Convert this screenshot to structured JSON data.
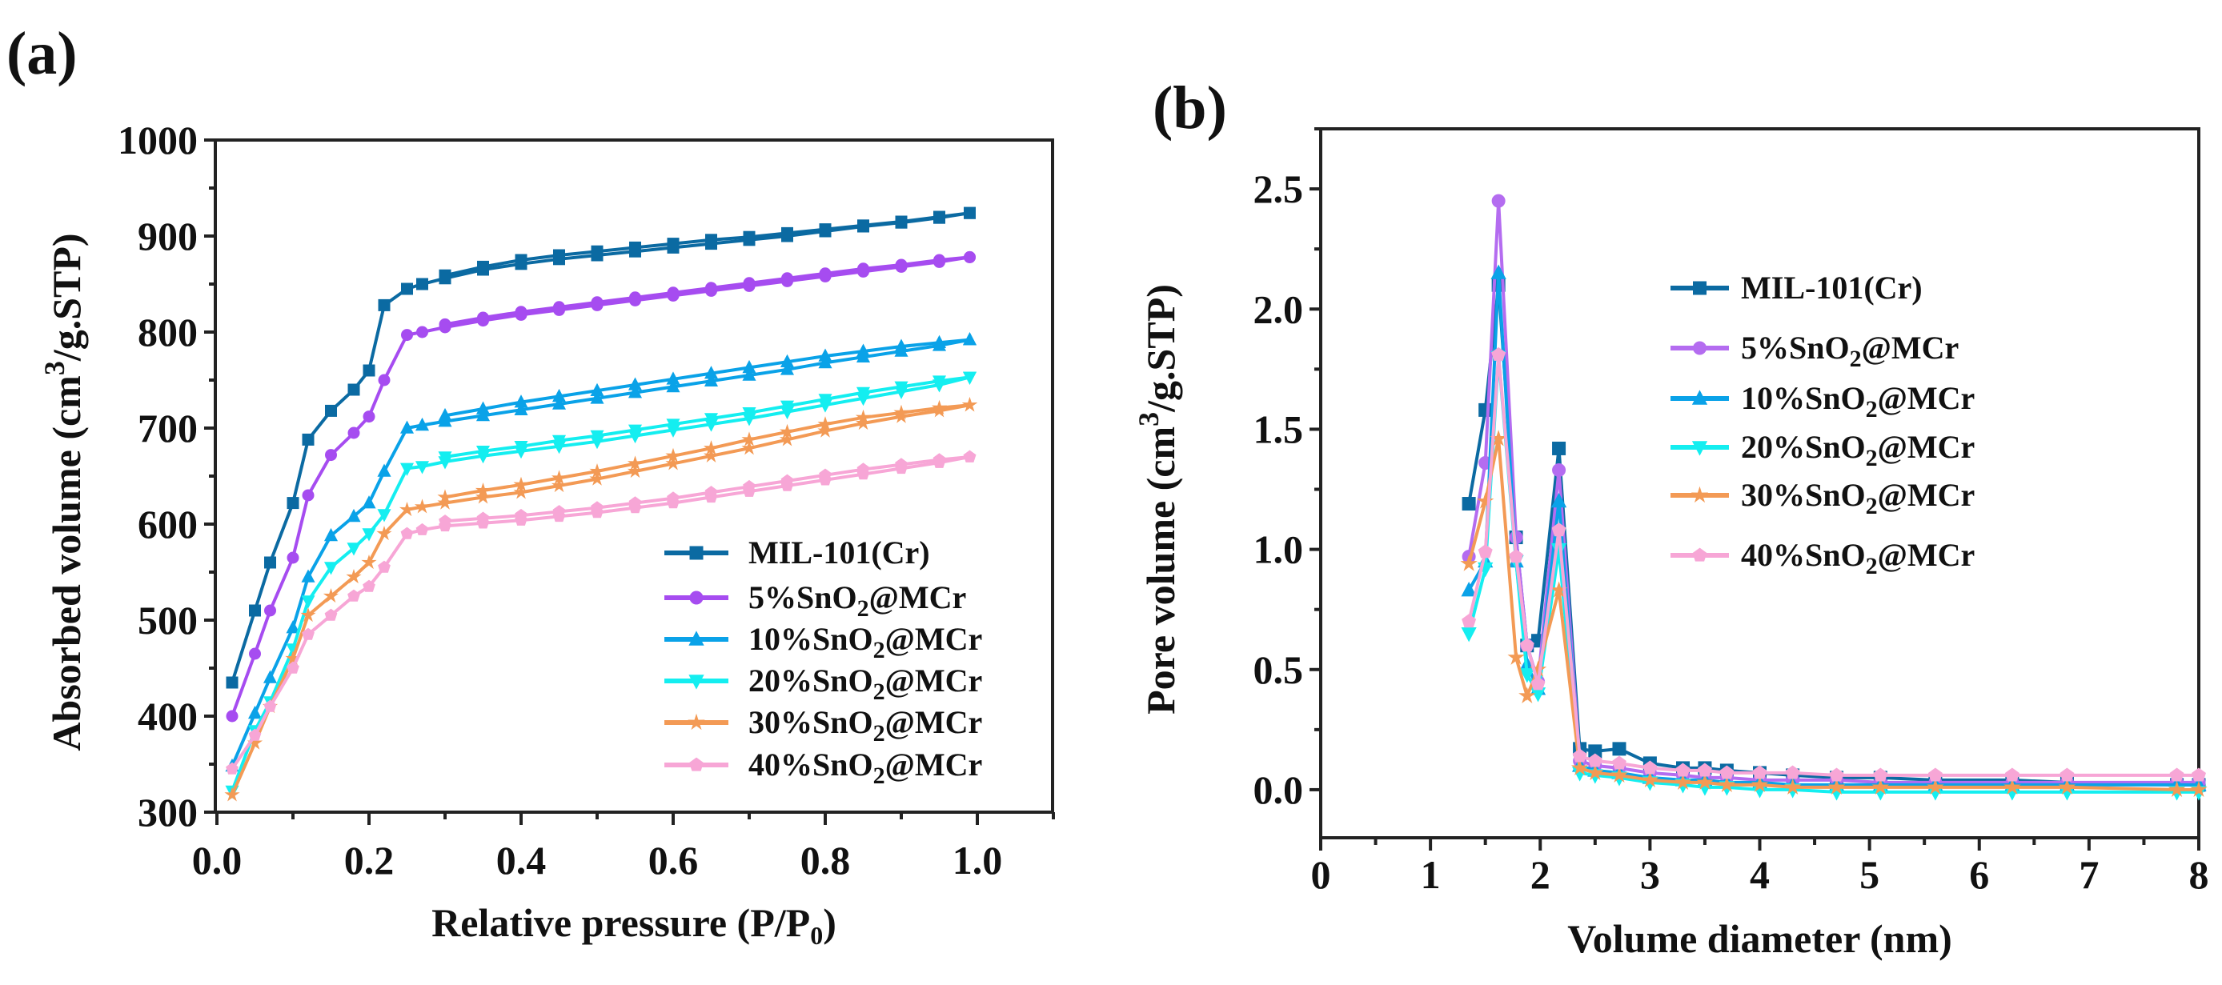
{
  "panels": {
    "a": "(a)",
    "b": "(b)"
  },
  "chart_data": [
    {
      "id": "a",
      "type": "line",
      "title": "",
      "xlabel": {
        "main": "Relative pressure (P/P",
        "sub": "0",
        "end": ")"
      },
      "ylabel": {
        "main": "Absorbed volume (cm",
        "sup": "3",
        "end": "/g.STP)"
      },
      "xlim": [
        0,
        1.1
      ],
      "ylim": [
        300,
        1000
      ],
      "xticks": [
        "0.0",
        "0.2",
        "0.4",
        "0.6",
        "0.8",
        "1.0"
      ],
      "yticks": [
        "300",
        "400",
        "500",
        "600",
        "700",
        "800",
        "900",
        "1000"
      ],
      "legend_position": "bottom-right",
      "x": [
        0.02,
        0.05,
        0.07,
        0.1,
        0.12,
        0.15,
        0.18,
        0.2,
        0.22,
        0.25,
        0.27,
        0.3,
        0.35,
        0.4,
        0.45,
        0.5,
        0.55,
        0.6,
        0.65,
        0.7,
        0.75,
        0.8,
        0.85,
        0.9,
        0.95,
        0.99
      ],
      "desorption_x": [
        0.3,
        0.35,
        0.4,
        0.45,
        0.5,
        0.55,
        0.6,
        0.65,
        0.7,
        0.75,
        0.8,
        0.85,
        0.9,
        0.95,
        0.99
      ],
      "series": [
        {
          "name": {
            "main": "MIL-101(Cr)",
            "sub": "",
            "end": ""
          },
          "color": "#0b6aa2",
          "marker": "square",
          "values": [
            435,
            510,
            560,
            622,
            688,
            718,
            740,
            760,
            828,
            845,
            850,
            856,
            865,
            871,
            876,
            880,
            884,
            888,
            892,
            896,
            900,
            905,
            910,
            914,
            919,
            924
          ],
          "desorption": [
            859,
            868,
            875,
            880,
            884,
            888,
            892,
            896,
            899,
            903,
            907,
            911,
            915,
            920,
            924
          ]
        },
        {
          "name": {
            "main": "5%SnO",
            "sub": "2",
            "end": "@MCr"
          },
          "color": "#a64cf0",
          "marker": "circle",
          "values": [
            400,
            465,
            510,
            565,
            630,
            672,
            695,
            712,
            750,
            797,
            800,
            805,
            812,
            818,
            823,
            828,
            833,
            838,
            843,
            848,
            853,
            858,
            863,
            868,
            873,
            878
          ],
          "desorption": [
            808,
            815,
            821,
            826,
            831,
            836,
            841,
            846,
            851,
            856,
            861,
            866,
            870,
            875,
            878
          ]
        },
        {
          "name": {
            "main": "10%SnO",
            "sub": "2",
            "end": "@MCr"
          },
          "color": "#0aa2e8",
          "marker": "triangle-up",
          "values": [
            348,
            403,
            440,
            492,
            545,
            588,
            608,
            622,
            655,
            700,
            703,
            707,
            713,
            719,
            725,
            731,
            737,
            743,
            749,
            755,
            761,
            768,
            774,
            780,
            786,
            792
          ],
          "desorption": [
            713,
            720,
            727,
            733,
            739,
            745,
            751,
            757,
            763,
            769,
            775,
            780,
            785,
            789,
            792
          ]
        },
        {
          "name": {
            "main": "20%SnO",
            "sub": "2",
            "end": "@MCr"
          },
          "color": "#14eef0",
          "marker": "triangle-down",
          "values": [
            322,
            385,
            415,
            470,
            520,
            555,
            575,
            590,
            610,
            658,
            660,
            665,
            671,
            676,
            681,
            686,
            692,
            698,
            704,
            710,
            717,
            724,
            731,
            738,
            745,
            753
          ],
          "desorption": [
            670,
            676,
            681,
            687,
            692,
            698,
            704,
            710,
            716,
            723,
            730,
            737,
            743,
            749,
            753
          ]
        },
        {
          "name": {
            "main": "30%SnO",
            "sub": "2",
            "end": "@MCr"
          },
          "color": "#f39a55",
          "marker": "star",
          "values": [
            318,
            372,
            410,
            460,
            505,
            525,
            545,
            560,
            590,
            615,
            618,
            622,
            628,
            633,
            640,
            647,
            655,
            663,
            671,
            679,
            688,
            697,
            705,
            712,
            718,
            724
          ],
          "desorption": [
            628,
            635,
            641,
            648,
            655,
            663,
            671,
            679,
            688,
            696,
            704,
            711,
            716,
            721,
            724
          ]
        },
        {
          "name": {
            "main": "40%SnO",
            "sub": "2",
            "end": "@MCr"
          },
          "color": "#f7a6d6",
          "marker": "pentagon",
          "values": [
            345,
            380,
            410,
            450,
            485,
            505,
            525,
            535,
            555,
            590,
            594,
            598,
            601,
            604,
            608,
            612,
            617,
            622,
            628,
            634,
            640,
            646,
            652,
            658,
            664,
            670
          ],
          "desorption": [
            603,
            606,
            609,
            613,
            617,
            622,
            627,
            633,
            639,
            645,
            651,
            657,
            662,
            667,
            670
          ]
        }
      ]
    },
    {
      "id": "b",
      "type": "line",
      "title": "",
      "xlabel": {
        "main": "Volume diameter (nm)",
        "sub": "",
        "end": ""
      },
      "ylabel": {
        "main": "Pore volume (cm",
        "sup": "3",
        "end": "/g.STP)"
      },
      "xlim": [
        0,
        8
      ],
      "ylim": [
        -0.2,
        2.75
      ],
      "xticks": [
        "0",
        "1",
        "2",
        "3",
        "4",
        "5",
        "6",
        "7",
        "8"
      ],
      "yticks": [
        "0.0",
        "0.5",
        "1.0",
        "1.5",
        "2.0",
        "2.5"
      ],
      "legend_position": "top-right",
      "x": [
        1.35,
        1.5,
        1.62,
        1.78,
        1.88,
        1.98,
        2.17,
        2.36,
        2.5,
        2.72,
        3.0,
        3.3,
        3.5,
        3.7,
        4.0,
        4.3,
        4.7,
        5.1,
        5.6,
        6.3,
        6.8,
        7.8,
        8.0
      ],
      "series": [
        {
          "name": {
            "main": "MIL-101(Cr)",
            "sub": "",
            "end": ""
          },
          "color": "#0b6aa2",
          "marker": "square",
          "values": [
            1.19,
            1.58,
            2.1,
            1.05,
            0.6,
            0.62,
            1.42,
            0.17,
            0.16,
            0.17,
            0.11,
            0.09,
            0.09,
            0.08,
            0.07,
            0.06,
            0.05,
            0.05,
            0.04,
            0.04,
            0.03,
            0.02,
            0.02
          ]
        },
        {
          "name": {
            "main": "5%SnO",
            "sub": "2",
            "end": "@MCr"
          },
          "color": "#b46cf0",
          "marker": "circle",
          "values": [
            0.97,
            1.36,
            2.45,
            1.05,
            0.6,
            0.45,
            1.33,
            0.12,
            0.1,
            0.09,
            0.07,
            0.06,
            0.05,
            0.05,
            0.04,
            0.04,
            0.04,
            0.03,
            0.03,
            0.03,
            0.03,
            0.03,
            0.03
          ]
        },
        {
          "name": {
            "main": "10%SnO",
            "sub": "2",
            "end": "@MCr"
          },
          "color": "#0aa2e8",
          "marker": "triangle-up",
          "values": [
            0.83,
            0.95,
            2.15,
            0.95,
            0.52,
            0.42,
            1.2,
            0.1,
            0.08,
            0.07,
            0.05,
            0.04,
            0.04,
            0.03,
            0.03,
            0.02,
            0.02,
            0.02,
            0.02,
            0.02,
            0.02,
            0.02,
            0.02
          ]
        },
        {
          "name": {
            "main": "20%SnO",
            "sub": "2",
            "end": "@MCr"
          },
          "color": "#14eef0",
          "marker": "triangle-down",
          "values": [
            0.65,
            0.92,
            1.8,
            0.95,
            0.48,
            0.4,
            1.0,
            0.07,
            0.06,
            0.05,
            0.03,
            0.02,
            0.01,
            0.01,
            0.0,
            0.0,
            -0.01,
            -0.01,
            -0.01,
            -0.01,
            -0.01,
            -0.01,
            -0.01
          ]
        },
        {
          "name": {
            "main": "30%SnO",
            "sub": "2",
            "end": "@MCr"
          },
          "color": "#f39a55",
          "marker": "star",
          "values": [
            0.94,
            1.2,
            1.46,
            0.55,
            0.39,
            0.5,
            0.83,
            0.09,
            0.07,
            0.06,
            0.04,
            0.03,
            0.03,
            0.02,
            0.02,
            0.01,
            0.01,
            0.01,
            0.01,
            0.01,
            0.01,
            0.0,
            0.0
          ]
        },
        {
          "name": {
            "main": "40%SnO",
            "sub": "2",
            "end": "@MCr"
          },
          "color": "#f7a6d6",
          "marker": "pentagon",
          "values": [
            0.7,
            0.99,
            1.81,
            0.97,
            0.6,
            0.44,
            1.08,
            0.14,
            0.12,
            0.11,
            0.09,
            0.08,
            0.08,
            0.07,
            0.07,
            0.07,
            0.06,
            0.06,
            0.06,
            0.06,
            0.06,
            0.06,
            0.06
          ]
        }
      ]
    }
  ]
}
